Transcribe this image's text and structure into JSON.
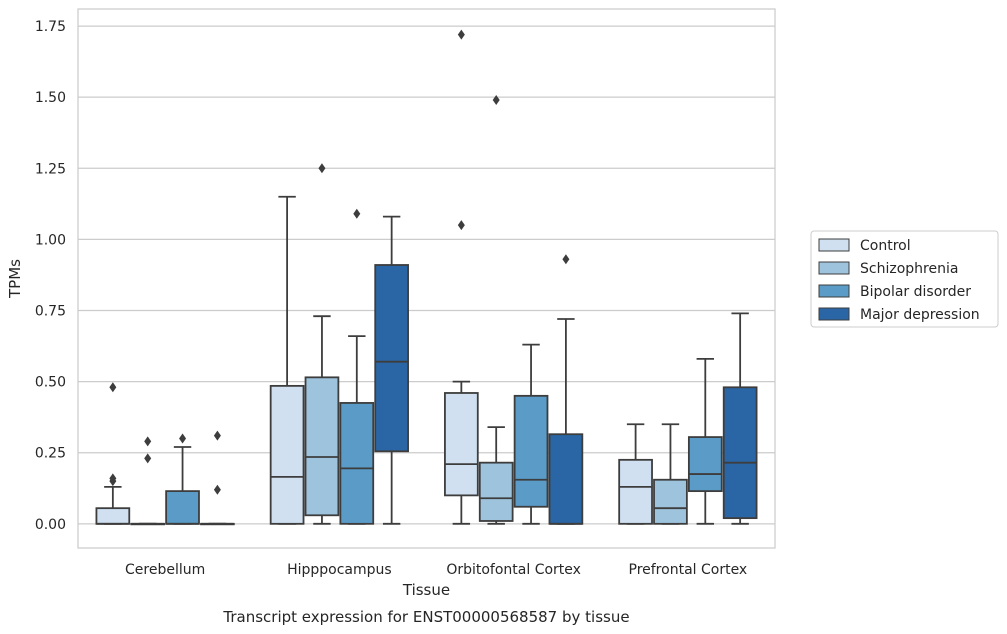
{
  "chart_data": {
    "type": "box",
    "title": "",
    "caption": "Transcript expression for ENST00000568587 by tissue",
    "xlabel": "Tissue",
    "ylabel": "TPMs",
    "ylim": [
      -0.085,
      1.81
    ],
    "yticks": [
      "0.00",
      "0.25",
      "0.50",
      "0.75",
      "1.00",
      "1.25",
      "1.50",
      "1.75"
    ],
    "ytick_values": [
      0,
      0.25,
      0.5,
      0.75,
      1.0,
      1.25,
      1.5,
      1.75
    ],
    "grid": "horizontal",
    "legend_position": "right",
    "categories": [
      "Cerebellum",
      "Hipppocampus",
      "Orbitofontal Cortex",
      "Prefrontal Cortex"
    ],
    "series": [
      {
        "name": "Control",
        "color": "#d0e0f0",
        "boxes": [
          {
            "whislo": 0.0,
            "q1": 0.0,
            "med": 0.0,
            "q3": 0.055,
            "whishi": 0.13,
            "fliers": [
              0.15,
              0.16,
              0.48
            ]
          },
          {
            "whislo": 0.0,
            "q1": 0.0,
            "med": 0.165,
            "q3": 0.485,
            "whishi": 1.15,
            "fliers": []
          },
          {
            "whislo": 0.0,
            "q1": 0.1,
            "med": 0.21,
            "q3": 0.46,
            "whishi": 0.5,
            "fliers": [
              1.05,
              1.72
            ]
          },
          {
            "whislo": 0.0,
            "q1": 0.0,
            "med": 0.13,
            "q3": 0.225,
            "whishi": 0.35,
            "fliers": []
          }
        ]
      },
      {
        "name": "Schizophrenia",
        "color": "#9ec3dd",
        "boxes": [
          {
            "whislo": 0.0,
            "q1": 0.0,
            "med": 0.0,
            "q3": 0.0,
            "whishi": 0.0,
            "fliers": [
              0.23,
              0.29
            ]
          },
          {
            "whislo": 0.0,
            "q1": 0.03,
            "med": 0.235,
            "q3": 0.515,
            "whishi": 0.73,
            "fliers": [
              1.25
            ]
          },
          {
            "whislo": 0.0,
            "q1": 0.01,
            "med": 0.09,
            "q3": 0.215,
            "whishi": 0.34,
            "fliers": [
              1.49
            ]
          },
          {
            "whislo": 0.0,
            "q1": 0.0,
            "med": 0.055,
            "q3": 0.155,
            "whishi": 0.35,
            "fliers": []
          }
        ]
      },
      {
        "name": "Bipolar disorder",
        "color": "#5a9bc8",
        "boxes": [
          {
            "whislo": 0.0,
            "q1": 0.0,
            "med": 0.0,
            "q3": 0.115,
            "whishi": 0.27,
            "fliers": [
              0.3
            ]
          },
          {
            "whislo": 0.0,
            "q1": 0.0,
            "med": 0.195,
            "q3": 0.425,
            "whishi": 0.66,
            "fliers": [
              1.09
            ]
          },
          {
            "whislo": 0.0,
            "q1": 0.06,
            "med": 0.155,
            "q3": 0.45,
            "whishi": 0.63,
            "fliers": []
          },
          {
            "whislo": 0.0,
            "q1": 0.115,
            "med": 0.175,
            "q3": 0.305,
            "whishi": 0.58,
            "fliers": []
          }
        ]
      },
      {
        "name": "Major depression",
        "color": "#2a66a6",
        "boxes": [
          {
            "whislo": 0.0,
            "q1": 0.0,
            "med": 0.0,
            "q3": 0.0,
            "whishi": 0.0,
            "fliers": [
              0.12,
              0.31
            ]
          },
          {
            "whislo": 0.0,
            "q1": 0.255,
            "med": 0.57,
            "q3": 0.91,
            "whishi": 1.08,
            "fliers": []
          },
          {
            "whislo": 0.0,
            "q1": 0.0,
            "med": 0.0,
            "q3": 0.315,
            "whishi": 0.72,
            "fliers": [
              0.93
            ]
          },
          {
            "whislo": 0.0,
            "q1": 0.02,
            "med": 0.215,
            "q3": 0.48,
            "whishi": 0.74,
            "fliers": []
          }
        ]
      }
    ]
  }
}
